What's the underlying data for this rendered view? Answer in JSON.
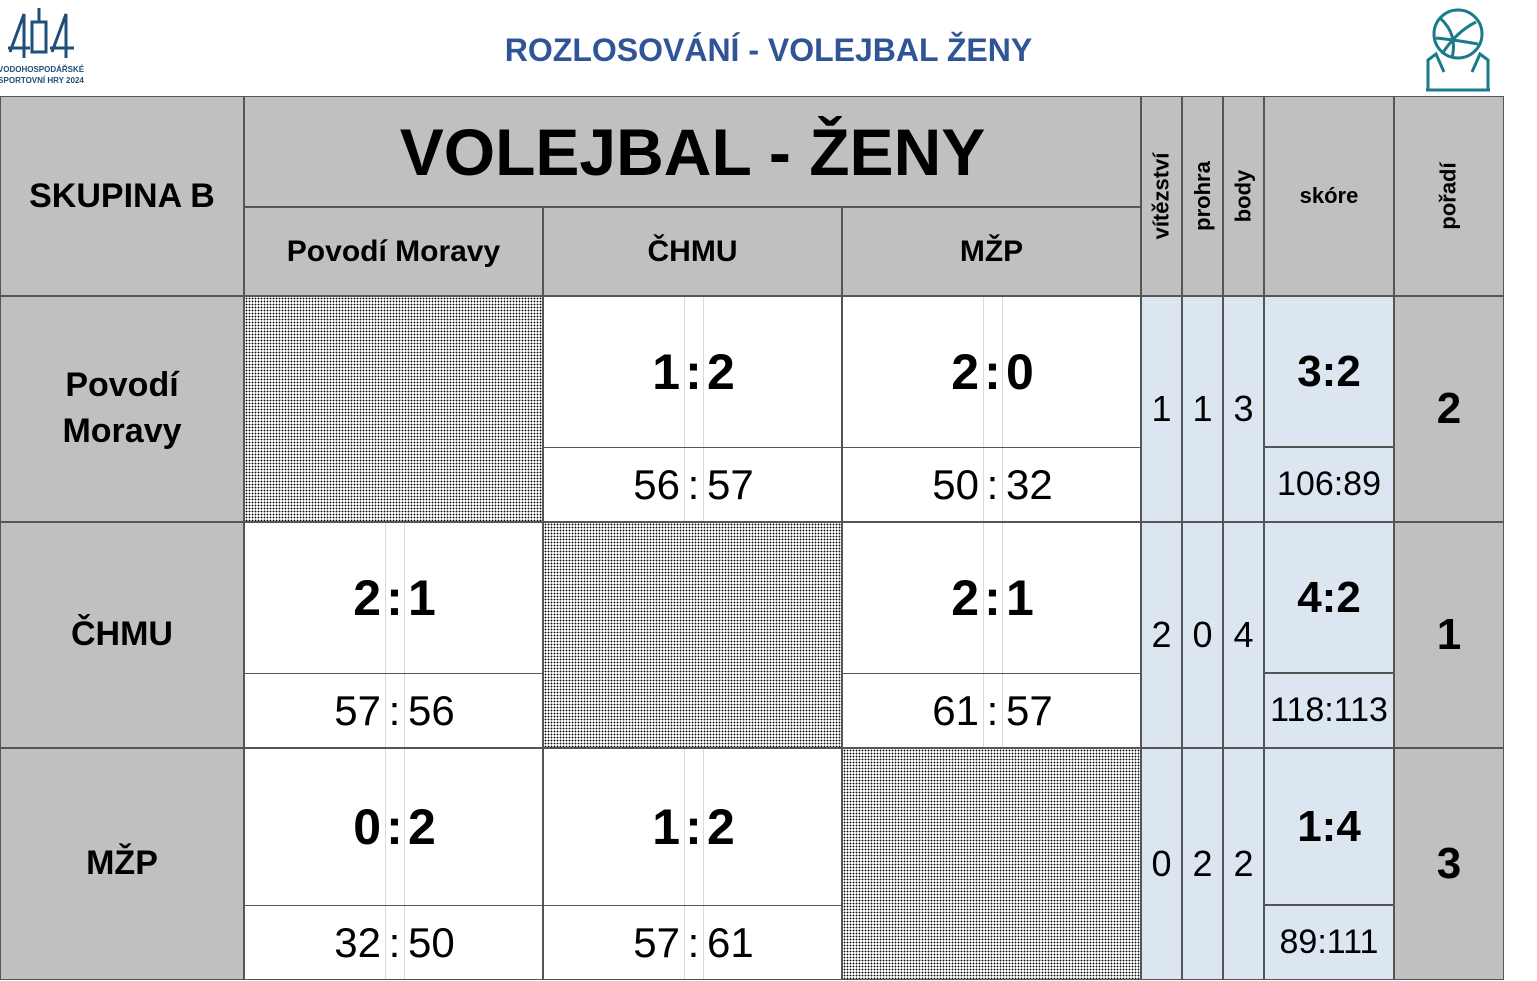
{
  "header": {
    "title": "ROZLOSOVÁNÍ - VOLEJBAL ŽENY",
    "logo_lines": [
      "VODOHOSPODÁŘSKÉ",
      "SPORTOVNÍ HRY 2024"
    ]
  },
  "table": {
    "group": "SKUPINA B",
    "title": "VOLEJBAL - ŽENY",
    "separator": ":",
    "columns": [
      "vítězství",
      "prohra",
      "body",
      "skóre",
      "pořadí"
    ],
    "teams": [
      "Povodí Moravy",
      "ČHMU",
      "MŽP"
    ],
    "rows": [
      {
        "results": [
          null,
          {
            "sets": [
              1,
              2
            ],
            "points": [
              56,
              57
            ]
          },
          {
            "sets": [
              2,
              0
            ],
            "points": [
              50,
              32
            ]
          }
        ],
        "wins": 1,
        "losses": 1,
        "points": 3,
        "score": "3:2",
        "balls": "106:89",
        "rank": 2
      },
      {
        "results": [
          {
            "sets": [
              2,
              1
            ],
            "points": [
              57,
              56
            ]
          },
          null,
          {
            "sets": [
              2,
              1
            ],
            "points": [
              61,
              57
            ]
          }
        ],
        "wins": 2,
        "losses": 0,
        "points": 4,
        "score": "4:2",
        "balls": "118:113",
        "rank": 1
      },
      {
        "results": [
          {
            "sets": [
              0,
              2
            ],
            "points": [
              32,
              50
            ]
          },
          {
            "sets": [
              1,
              2
            ],
            "points": [
              57,
              61
            ]
          },
          null
        ],
        "wins": 0,
        "losses": 2,
        "points": 2,
        "score": "1:4",
        "balls": "89:111",
        "rank": 3
      }
    ]
  }
}
